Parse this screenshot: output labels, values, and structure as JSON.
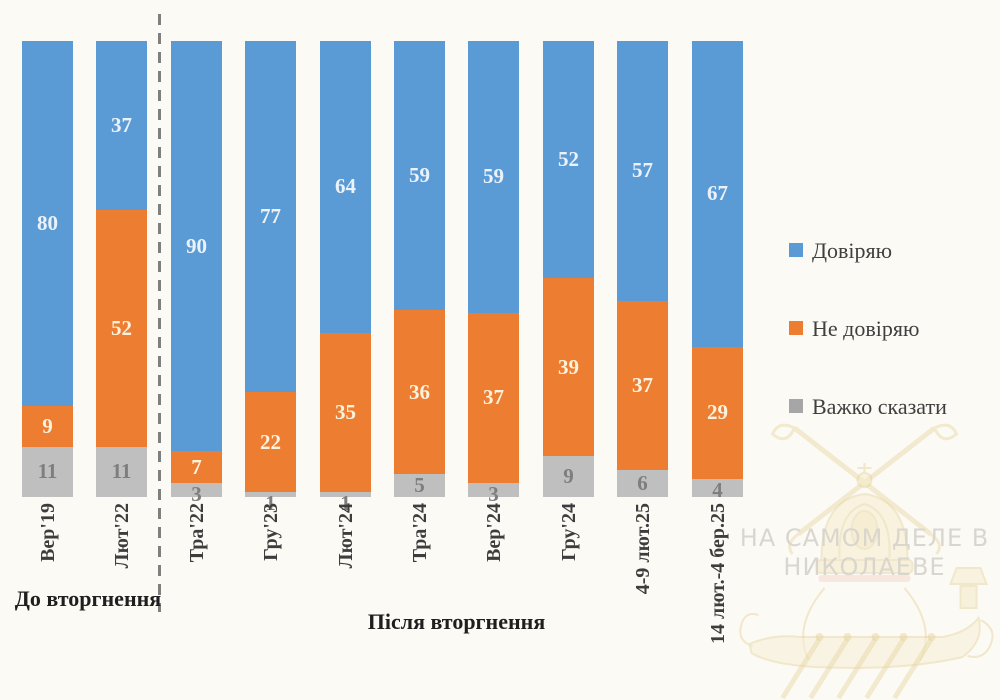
{
  "chart_data": {
    "type": "bar",
    "stacked": true,
    "unit": "percent",
    "ylim": [
      0,
      100
    ],
    "grid": false,
    "legend_position": "right",
    "categories": [
      "Вер'19",
      "Лют'22",
      "Тра'22",
      "Гру'23",
      "Лют'24",
      "Тра'24",
      "Вер'24",
      "Гру'24",
      "4-9 лют.25",
      "14 лют.-4 бер.25"
    ],
    "series": [
      {
        "name": "Довіряю",
        "color": "#5B9BD5",
        "label_color": "#EBF2FA",
        "legend_marker_color": "#5B9BD5",
        "values": [
          80,
          37,
          90,
          77,
          64,
          59,
          59,
          52,
          57,
          67
        ]
      },
      {
        "name": "Не довіряю",
        "color": "#ED7D31",
        "label_color": "#FBF2DD",
        "legend_marker_color": "#ED7D31",
        "values": [
          9,
          52,
          7,
          22,
          35,
          36,
          37,
          39,
          37,
          29
        ]
      },
      {
        "name": "Важко сказати",
        "color": "#BFBFBF",
        "label_color": "#7E7E7E",
        "legend_marker_color": "#A6A6A6",
        "values": [
          11,
          11,
          3,
          1,
          1,
          5,
          3,
          9,
          6,
          4
        ]
      }
    ],
    "group_labels": [
      {
        "label": "До вторгнення",
        "categories": [
          0,
          1
        ]
      },
      {
        "label": "Після вторгнення",
        "categories": [
          2,
          9
        ]
      }
    ],
    "separator_after_category_index": 1
  },
  "colors": {
    "background": "#FCFAF5",
    "separator": "#7F7F7F",
    "tick_label": "#3D3D3D",
    "group_label": "#1F1F1F",
    "legend_text": "#3F3F3F",
    "watermark_text": "#D8D5CD",
    "watermark_emblem": "#E7D5A0"
  },
  "watermark": {
    "line1": "НА САМОМ ДЕЛЕ В",
    "line2": "НИКОЛАЕВЕ"
  }
}
